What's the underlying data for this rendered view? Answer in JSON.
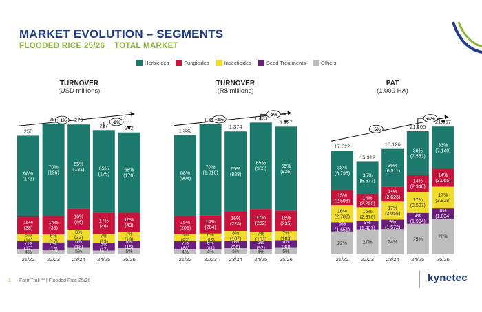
{
  "page": {
    "title": "MARKET EVOLUTION – SEGMENTS",
    "subtitle": "FLOODED RICE 25/26 _ TOTAL MARKET",
    "footer": "FarmTrak™ | Flooded Rice 25/26",
    "page_number": "1",
    "logo": "kynetec"
  },
  "colors": {
    "Herbicides": "#1b7a6b",
    "Fungicides": "#c8143c",
    "Insecticides": "#f2dc2b",
    "Seed Treatments": "#6a1f7d",
    "Others": "#bdbdbd",
    "title": "#1f3c88",
    "subtitle": "#8cb43c"
  },
  "legend": [
    "Herbicides",
    "Fungicides",
    "Insecticides",
    "Seed Treatments",
    "Others"
  ],
  "chart_data": [
    {
      "type": "bar",
      "stacked": true,
      "title": "TURNOVER",
      "subtitle": "(USD millions)",
      "categories": [
        "21/22",
        "22/23",
        "23/24",
        "24/25",
        "25/26"
      ],
      "totals": [
        "255",
        "281",
        "279",
        "267",
        "262"
      ],
      "series": [
        {
          "name": "Others",
          "pct": [
            4,
            3,
            5,
            3,
            5
          ],
          "labels": [
            "4%",
            "",
            "5%",
            "",
            "5%"
          ]
        },
        {
          "name": "Seed Treatments",
          "pct": [
            7,
            6,
            6,
            6,
            6
          ],
          "labels": [
            "7%\n(17)",
            "6%\n(16)",
            "6%\n(18)",
            "6%\n(17)",
            "6%\n(15)"
          ]
        },
        {
          "name": "Insecticides",
          "pct": [
            6,
            6,
            8,
            7,
            7
          ],
          "labels": [
            "6%\n(16)",
            "6%\n(17)",
            "8%\n(22)",
            "7%\n(19)",
            "7%\n(19)"
          ]
        },
        {
          "name": "Fungicides",
          "pct": [
            15,
            14,
            16,
            17,
            16
          ],
          "labels": [
            "15%\n(38)",
            "14%\n(39)",
            "16%\n(46)",
            "17%\n(46)",
            "16%\n(43)"
          ]
        },
        {
          "name": "Herbicides",
          "pct": [
            68,
            70,
            65,
            65,
            65
          ],
          "labels": [
            "68%\n(173)",
            "70%\n(196)",
            "65%\n(181)",
            "65%\n(175)",
            "65%\n(170)"
          ]
        }
      ],
      "cagr_label": "+1%",
      "yoy_label": "-2%",
      "ylim": [
        0,
        300
      ]
    },
    {
      "type": "bar",
      "stacked": true,
      "title": "TURNOVER",
      "subtitle": "(R$ millions)",
      "categories": [
        "21/22",
        "22/23",
        "23/24",
        "24/25",
        "25/26"
      ],
      "totals": [
        "1.332",
        "1.454",
        "1.374",
        "1.473",
        "1.427"
      ],
      "series": [
        {
          "name": "Others",
          "pct": [
            4,
            4,
            5,
            4,
            5
          ],
          "labels": [
            "4%",
            "4%",
            "5%",
            "4%",
            "5%"
          ]
        },
        {
          "name": "Seed Treatments",
          "pct": [
            7,
            6,
            6,
            6,
            6
          ],
          "labels": [
            "7%\n(88)",
            "6%\n(81)",
            "6%\n(86)",
            "6%\n(92)",
            "6%\n(80)"
          ]
        },
        {
          "name": "Insecticides",
          "pct": [
            6,
            6,
            8,
            7,
            7
          ],
          "labels": [
            "6%\n(83)",
            "6%\n(86)",
            "8%\n(107)",
            "7%\n(103)",
            "7%\n(103)"
          ]
        },
        {
          "name": "Fungicides",
          "pct": [
            15,
            14,
            16,
            17,
            16
          ],
          "labels": [
            "15%\n(201)",
            "14%\n(204)",
            "16%\n(224)",
            "17%\n(252)",
            "16%\n(235)"
          ]
        },
        {
          "name": "Herbicides",
          "pct": [
            68,
            70,
            65,
            65,
            65
          ],
          "labels": [
            "68%\n(904)",
            "70%\n(1.016)",
            "65%\n(888)",
            "65%\n(963)",
            "65%\n(926)"
          ]
        }
      ],
      "cagr_label": "+2%",
      "yoy_label": "-3%",
      "ylim": [
        0,
        1560
      ]
    },
    {
      "type": "bar",
      "stacked": true,
      "title": "PAT",
      "subtitle": "(1.000 HA)",
      "categories": [
        "21/22",
        "22/23",
        "23/24",
        "24/25",
        "25/26"
      ],
      "totals": [
        "17.822",
        "15.912",
        "18.126",
        "21.165",
        "21.967"
      ],
      "series": [
        {
          "name": "Others",
          "pct": [
            22,
            27,
            24,
            25,
            28
          ],
          "labels": [
            "22%",
            "27%",
            "24%",
            "25%",
            "28%"
          ]
        },
        {
          "name": "Seed Treatments",
          "pct": [
            9,
            9,
            9,
            9,
            8
          ],
          "labels": [
            "9%\n(1.651)",
            "9%\n(1.407)",
            "9%\n(1.572)",
            "9%\n(1.904)",
            "8%\n(1.834)"
          ]
        },
        {
          "name": "Insecticides",
          "pct": [
            16,
            15,
            17,
            17,
            17
          ],
          "labels": [
            "16%\n(2.782)",
            "15%\n(2.376)",
            "17%\n(3.058)",
            "17%\n(3.507)",
            "17%\n(3.828)"
          ]
        },
        {
          "name": "Fungicides",
          "pct": [
            15,
            14,
            14,
            14,
            14
          ],
          "labels": [
            "15%\n(2.598)",
            "14%\n(2.290)",
            "14%\n(2.626)",
            "14%\n(2.946)",
            "14%\n(3.065)"
          ]
        },
        {
          "name": "Herbicides",
          "pct": [
            38,
            35,
            36,
            36,
            33
          ],
          "labels": [
            "38%\n(6.795)",
            "35%\n(5.577)",
            "36%\n(6.511)",
            "36%\n(7.553)",
            "33%\n(7.140)"
          ]
        }
      ],
      "cagr_label": "+5%",
      "yoy_label": "+4%",
      "ylim": [
        0,
        24000
      ]
    }
  ]
}
